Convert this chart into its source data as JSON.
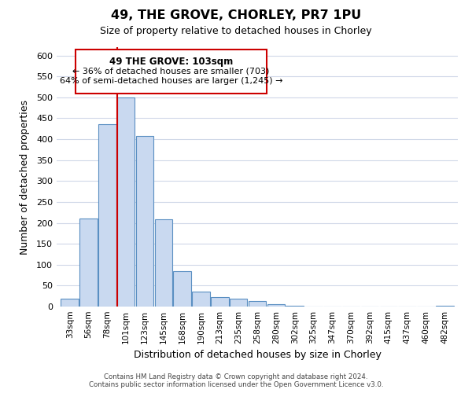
{
  "title": "49, THE GROVE, CHORLEY, PR7 1PU",
  "subtitle": "Size of property relative to detached houses in Chorley",
  "xlabel": "Distribution of detached houses by size in Chorley",
  "ylabel": "Number of detached properties",
  "bar_labels": [
    "33sqm",
    "56sqm",
    "78sqm",
    "101sqm",
    "123sqm",
    "145sqm",
    "168sqm",
    "190sqm",
    "213sqm",
    "235sqm",
    "258sqm",
    "280sqm",
    "302sqm",
    "325sqm",
    "347sqm",
    "370sqm",
    "392sqm",
    "415sqm",
    "437sqm",
    "460sqm",
    "482sqm"
  ],
  "bar_heights": [
    18,
    211,
    435,
    500,
    408,
    208,
    84,
    35,
    22,
    18,
    13,
    5,
    1,
    0,
    0,
    0,
    0,
    0,
    0,
    0,
    2
  ],
  "bar_color": "#c9d9f0",
  "bar_edge_color": "#5a8fc2",
  "highlight_bar_index": 3,
  "highlight_line_color": "#cc0000",
  "ylim": [
    0,
    620
  ],
  "yticks": [
    0,
    50,
    100,
    150,
    200,
    250,
    300,
    350,
    400,
    450,
    500,
    550,
    600
  ],
  "annotation_title": "49 THE GROVE: 103sqm",
  "annotation_line1": "← 36% of detached houses are smaller (703)",
  "annotation_line2": "64% of semi-detached houses are larger (1,245) →",
  "annotation_box_color": "#ffffff",
  "annotation_box_edge_color": "#cc0000",
  "footer_line1": "Contains HM Land Registry data © Crown copyright and database right 2024.",
  "footer_line2": "Contains public sector information licensed under the Open Government Licence v3.0.",
  "background_color": "#ffffff",
  "grid_color": "#d0d8e8"
}
